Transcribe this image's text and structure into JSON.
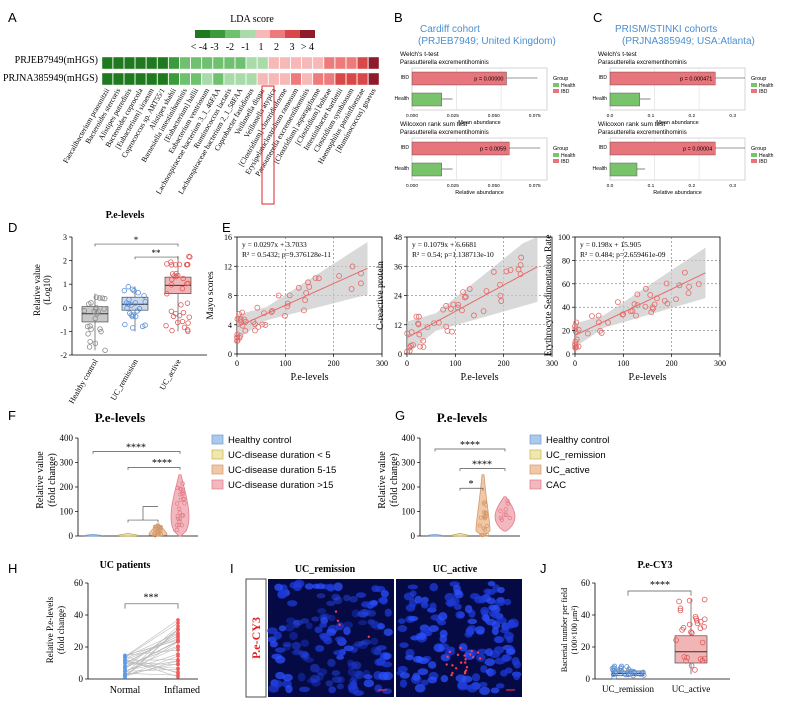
{
  "panels": {
    "A": {
      "label": "A",
      "title": "LDA score",
      "scale_labels": [
        "< -4",
        "-3",
        "-2",
        "-1",
        "1",
        "2",
        "3",
        "> 4"
      ],
      "scale_colors": [
        "#1f7a1f",
        "#3c9a3c",
        "#6fc06f",
        "#a9dba9",
        "#f7b8b8",
        "#ee7b7b",
        "#d94848",
        "#8f1a2a"
      ],
      "rows": [
        "PRJEB7949(mHGS)",
        "PRJNA385949(mHGS)"
      ],
      "taxa": [
        "Faecalibacterium prausnitzii",
        "Bacteroides stercoris",
        "Alistipes putredinis",
        "Bacteroides coprocola",
        "[Eubacterium] siraeum",
        "Coprococcus sp. ART55/1",
        "Alistipes shahii",
        "Barnesiella intestinihominis",
        "[Eubacterium] hallii",
        "Eubacterium ventriosum",
        "Lachnospiraceae bacterium 3_1_46FAA",
        "Ruminococcus lactaris",
        "Lachnospiraceae bacterium 2_1_58FAA",
        "Coprobacter fastidiosus",
        "Veillonella dispar",
        "Veillonella atypica",
        "[Clostridium] clostridioforme",
        "Erysipelatoclostridium ramosum",
        "Parasutterella excrementihominis",
        "[Clostridium] asparagiforme",
        "[Clostridium] bolteae",
        "Intestinibacter bartlettii",
        "Clostridium symbiosum",
        "Haemophilus parainfluenzae",
        "[Ruminococcus] gnavus"
      ],
      "highlighted_taxon": "Parasutterella excrementihominis",
      "row1_colors": [
        "#1f7a1f",
        "#1f7a1f",
        "#1f7a1f",
        "#1f7a1f",
        "#1f7a1f",
        "#1f7a1f",
        "#3c9a3c",
        "#6fc06f",
        "#6fc06f",
        "#6fc06f",
        "#6fc06f",
        "#6fc06f",
        "#6fc06f",
        "#a9dba9",
        "#a9dba9",
        "#f7b8b8",
        "#f7b8b8",
        "#f7b8b8",
        "#f7b8b8",
        "#f7b8b8",
        "#ee7b7b",
        "#ee7b7b",
        "#ee7b7b",
        "#d94848",
        "#8f1a2a"
      ],
      "row2_colors": [
        "#1f7a1f",
        "#1f7a1f",
        "#1f7a1f",
        "#1f7a1f",
        "#1f7a1f",
        "#1f7a1f",
        "#3c9a3c",
        "#6fc06f",
        "#6fc06f",
        "#a9dba9",
        "#6fc06f",
        "#a9dba9",
        "#a9dba9",
        "#a9dba9",
        "#f7b8b8",
        "#f7b8b8",
        "#f7b8b8",
        "#ee7b7b",
        "#f7b8b8",
        "#ee7b7b",
        "#ee7b7b",
        "#d94848",
        "#d94848",
        "#d94848",
        "#8f1a2a"
      ]
    },
    "B": {
      "label": "B",
      "title_line1": "Cardiff cohort",
      "title_line2": "(PRJEB7949; United Kingdom)",
      "test1": "Welch's t-test",
      "test2": "Wilcoxon rank sum test",
      "species": "Parasutterella excrementihominis",
      "pval1": "p = 0.00000",
      "pval2": "p = 0.0059",
      "xlabel1": "Mean abundance",
      "xlabel2": "Relative abundance",
      "ticks": [
        "0.000",
        "0.025",
        "0.050",
        "0.075"
      ],
      "groups": [
        "IBD",
        "Health"
      ],
      "legend_title": "Group",
      "legend_items": [
        "Health",
        "IBD"
      ]
    },
    "C": {
      "label": "C",
      "title_line1": "PRISM/STINKI cohorts",
      "title_line2": "(PRJNA385949; USA:Atlanta)",
      "test1": "Welch's t-test",
      "test2": "Wilcoxon rank sum test",
      "species": "Parasutterella excrementihominis",
      "pval1": "p = 0.000471",
      "pval2": "p = 0.00004",
      "xlabel1": "Mean abundance",
      "xlabel2": "Relative abundance",
      "ticks": [
        "0.0",
        "0.1",
        "0.2",
        "0.3"
      ],
      "groups": [
        "IBD",
        "Health"
      ],
      "legend_title": "Group",
      "legend_items": [
        "Health",
        "IBD"
      ]
    },
    "D": {
      "label": "D",
      "title": "P.e-levels",
      "ylabel_line1": "Relative value",
      "ylabel_line2": "(Log10)",
      "yticks": [
        "3",
        "2",
        "1",
        "0",
        "-1",
        "-2"
      ],
      "groups": [
        "Healthy control",
        "UC_remission",
        "UC_active"
      ],
      "sig1": "*",
      "sig2": "**"
    },
    "E": {
      "label": "E",
      "xlabel": "P.e-levels",
      "xticks": [
        "0",
        "100",
        "200",
        "300"
      ],
      "plot1": {
        "ylabel": "Mayo scores",
        "yticks": [
          "16",
          "12",
          "8",
          "4",
          "0"
        ],
        "eq": "y = 0.0297x + 3.7033",
        "stat": "R² = 0.5432; p=9.376128e-11"
      },
      "plot2": {
        "ylabel": "C-reactive protein",
        "yticks": [
          "48",
          "36",
          "24",
          "12",
          "0"
        ],
        "eq": "y = 0.1079x + 6.6681",
        "stat": "R² = 0.54; p=1.138713e-10"
      },
      "plot3": {
        "ylabel": "Erythrocyte Sedimentation Rate",
        "yticks": [
          "100",
          "80",
          "60",
          "40",
          "20",
          "0"
        ],
        "eq": "y = 0.198x + 15.905",
        "stat": "R² = 0.484; p=2.659461e-09"
      }
    },
    "F": {
      "label": "F",
      "title": "P.e-levels",
      "ylabel_line1": "Relative value",
      "ylabel_line2": "(fold change)",
      "yticks": [
        "400",
        "300",
        "200",
        "100",
        "0"
      ],
      "sig1": "****",
      "sig2": "****",
      "legend": [
        "Healthy control",
        "UC-disease duration < 5",
        "UC-disease duration 5-15",
        "UC-disease duration >15"
      ]
    },
    "G": {
      "label": "G",
      "title": "P.e-levels",
      "ylabel_line1": "Relative value",
      "ylabel_line2": "(fold change)",
      "yticks": [
        "400",
        "300",
        "200",
        "100",
        "0"
      ],
      "sig1": "****",
      "sig2": "****",
      "sig3": "*",
      "legend": [
        "Healthy control",
        "UC_remission",
        "UC_active",
        "CAC"
      ]
    },
    "H": {
      "label": "H",
      "title": "UC patients",
      "ylabel_line1": "Relative P.e-levels",
      "ylabel_line2": "(fold change)",
      "yticks": [
        "60",
        "40",
        "20",
        "0"
      ],
      "xlabels": [
        "Normal",
        "Inflamed"
      ],
      "sig": "***"
    },
    "I": {
      "label": "I",
      "side_label": "P.e-CY3",
      "panel_titles": [
        "UC_remission",
        "UC_active"
      ]
    },
    "J": {
      "label": "J",
      "title": "P.e-CY3",
      "ylabel_line1": "Bacterial number per field",
      "ylabel_line2": "(100×100 μm²)",
      "yticks": [
        "60",
        "40",
        "20",
        "0"
      ],
      "xlabels": [
        "UC_remission",
        "UC_active"
      ],
      "sig": "****"
    }
  },
  "colors": {
    "ibd_red": "#e8747c",
    "health_green": "#79c36a",
    "scatter_red": "#e66a6a",
    "title_blue": "#4a8fd1",
    "highlight_box": "#e02424",
    "hc_blue": "#aac9ec",
    "remission_yellow": "#f0e6b0",
    "active_orange": "#f0c8a8",
    "long_pink": "#f3b8bf"
  }
}
